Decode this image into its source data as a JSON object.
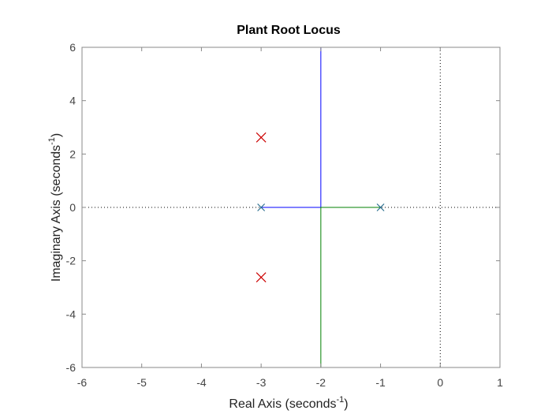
{
  "chart_data": {
    "type": "scatter",
    "title": "Plant Root Locus",
    "xlabel": {
      "prefix": "Real Axis (seconds",
      "sup": "-1",
      "suffix": ")"
    },
    "ylabel": {
      "prefix": "Imaginary Axis (seconds",
      "sup": "-1",
      "suffix": ")"
    },
    "xlim": [
      -6,
      1
    ],
    "ylim": [
      -6,
      6
    ],
    "xticks": [
      -6,
      -5,
      -4,
      -3,
      -2,
      -1,
      0,
      1
    ],
    "yticks": [
      -6,
      -4,
      -2,
      0,
      2,
      4,
      6
    ],
    "grid": false,
    "reference_lines": [
      {
        "axis": "x",
        "value": 0,
        "style": "dotted",
        "color": "#000000"
      },
      {
        "axis": "y",
        "value": 0,
        "style": "dotted",
        "color": "#000000"
      }
    ],
    "locus_branches": [
      {
        "color": "#0000ff",
        "points": [
          [
            -3,
            0
          ],
          [
            -2,
            0
          ],
          [
            -2,
            6
          ]
        ]
      },
      {
        "color": "#008000",
        "points": [
          [
            -1,
            0
          ],
          [
            -2,
            0
          ],
          [
            -2,
            -6
          ]
        ]
      }
    ],
    "plant_poles": {
      "color": "#2a6f8f",
      "marker": "x",
      "points": [
        [
          -3,
          0
        ],
        [
          -1,
          0
        ]
      ]
    },
    "closed_loop_poles": {
      "color": "#cc0000",
      "marker": "x",
      "points": [
        [
          -3,
          2.62
        ],
        [
          -3,
          -2.62
        ]
      ]
    }
  }
}
